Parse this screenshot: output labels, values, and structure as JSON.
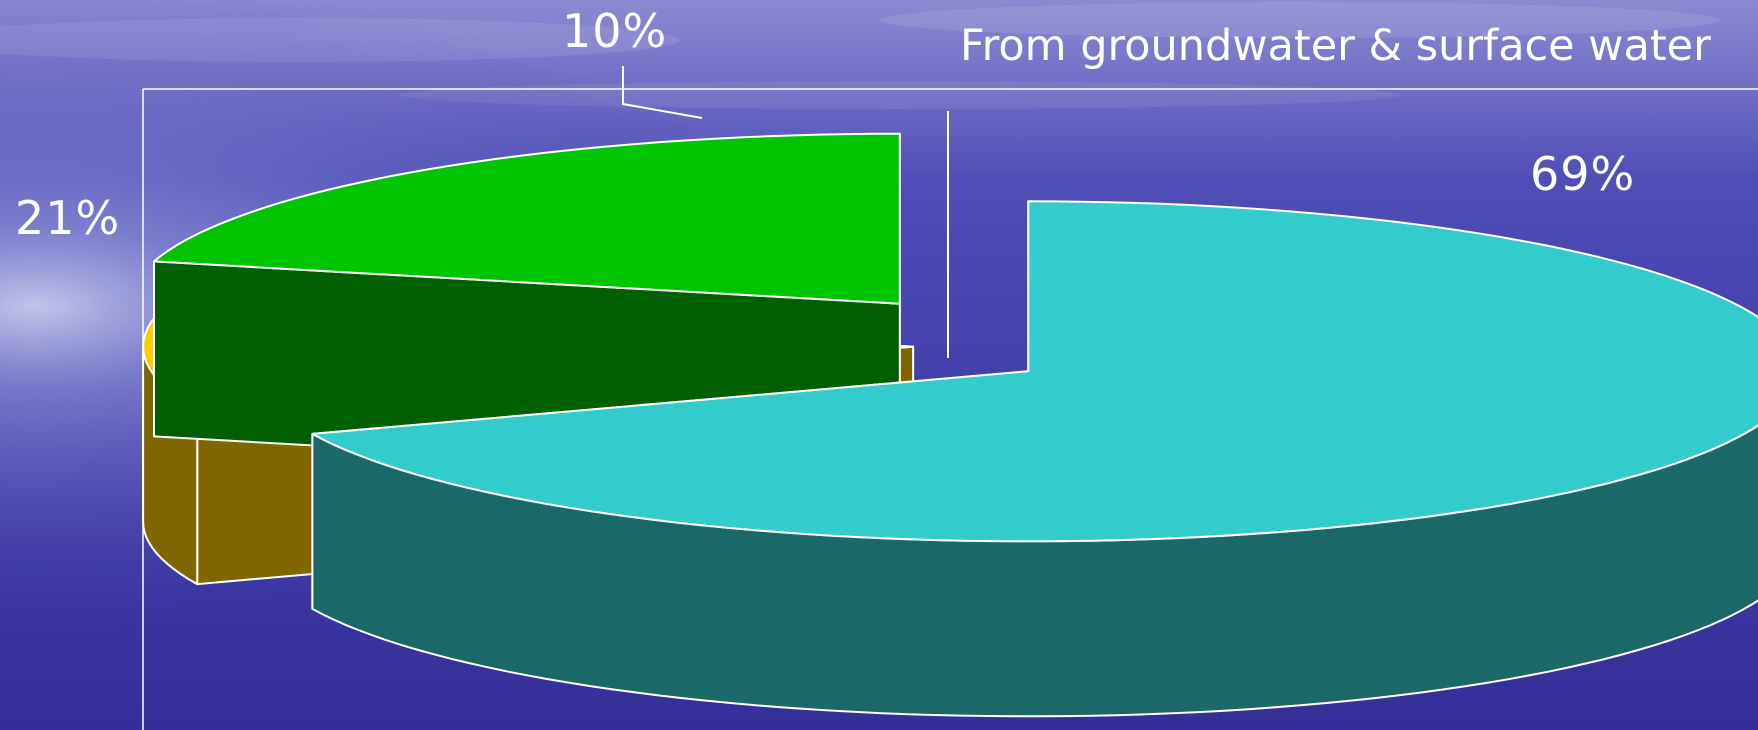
{
  "chart_data": {
    "type": "pie",
    "style": "3d-exploded",
    "title": "From groundwater & surface water",
    "slices": [
      {
        "value": 69,
        "label": "69%",
        "color": "#33CCCC",
        "side_color": "#1B6868"
      },
      {
        "value": 21,
        "label": "21%",
        "color": "#00C400",
        "side_color": "#005F00"
      },
      {
        "value": 10,
        "label": "10%",
        "color": "#FFCC00",
        "side_color": "#806600"
      }
    ],
    "background_color": "#3A35A0"
  }
}
